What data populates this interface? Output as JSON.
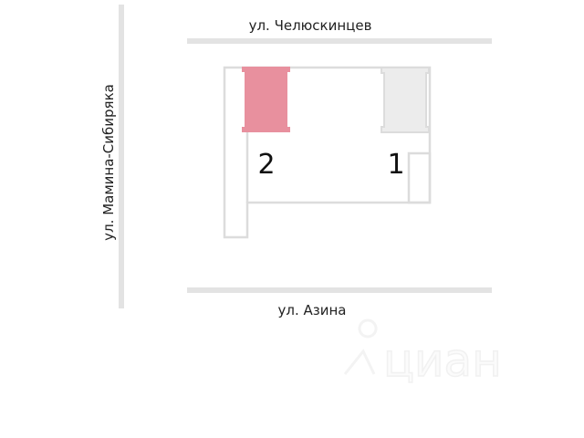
{
  "streets": {
    "top": "ул. Челюскинцев",
    "bottom": "ул. Азина",
    "left": "ул. Мамина-Сибиряка"
  },
  "buildings": [
    {
      "number": "2",
      "highlighted": true,
      "color": "#e8909e"
    },
    {
      "number": "1",
      "highlighted": false,
      "color": "#ececec"
    }
  ],
  "colors": {
    "road": "#e3e3e3",
    "outline": "#dcdcdc"
  },
  "watermark": "циан"
}
